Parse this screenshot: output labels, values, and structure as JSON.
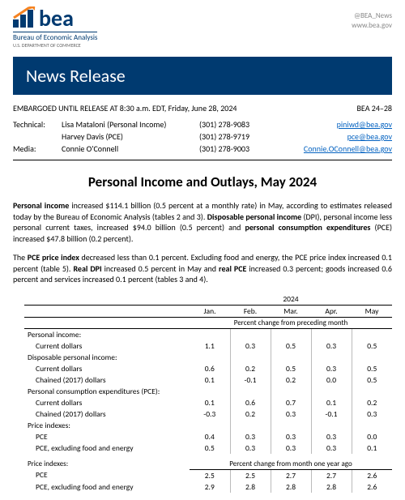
{
  "header": {
    "logo_letters": "bea",
    "agency": "Bureau of Economic Analysis",
    "dept": "U.S. DEPARTMENT OF COMMERCE",
    "twitter": "@BEA_News",
    "site": "www.bea.gov"
  },
  "banner": "News Release",
  "embargo": "EMBARGOED UNTIL RELEASE AT 8:30 a.m. EDT, Friday, June 28, 2024",
  "release_id": "BEA 24–28",
  "contacts": [
    {
      "role": "Technical:",
      "name": "Lisa Mataloni (Personal Income)",
      "phone": "(301) 278-9083",
      "email": "piniwd@bea.gov"
    },
    {
      "role": "",
      "name": "Harvey Davis (PCE)",
      "phone": "(301) 278-9719",
      "email": "pce@bea.gov"
    },
    {
      "role": "Media:",
      "name": "Connie O'Connell",
      "phone": "(301) 278-9003",
      "email": "Connie.OConnell@bea.gov"
    }
  ],
  "title": "Personal Income and Outlays, May 2024",
  "p1": {
    "b1": "Personal income",
    "t1": " increased $114.1 billion (0.5 percent at a monthly rate) in May, according to estimates released today by the Bureau of Economic Analysis (tables 2 and 3). ",
    "b2": "Disposable personal income",
    "t2": " (DPI), personal income less personal current taxes, increased $94.0 billion (0.5 percent) and ",
    "b3": "personal consumption expenditures",
    "t3": " (PCE) increased $47.8 billion (0.2 percent)."
  },
  "p2": {
    "t0": "The ",
    "b1": "PCE price index",
    "t1": " decreased less than 0.1 percent. Excluding food and energy, the PCE price index increased 0.1 percent (table 5). ",
    "b2": "Real DPI",
    "t2": " increased 0.5 percent in May and ",
    "b3": "real PCE",
    "t3": " increased 0.3 percent; goods increased 0.6 percent and services increased 0.1 percent (tables 3 and 4)."
  },
  "table": {
    "year": "2024",
    "months": [
      "Jan.",
      "Feb.",
      "Mar.",
      "Apr.",
      "May"
    ],
    "section1_header": "Percent change from preceding month",
    "rows1": [
      {
        "label": "Personal income:",
        "indent": 0,
        "vals": [
          "",
          "",
          "",
          "",
          ""
        ]
      },
      {
        "label": "Current dollars",
        "indent": 1,
        "vals": [
          "1.1",
          "0.3",
          "0.5",
          "0.3",
          "0.5"
        ]
      },
      {
        "label": "Disposable personal income:",
        "indent": 0,
        "vals": [
          "",
          "",
          "",
          "",
          ""
        ]
      },
      {
        "label": "Current dollars",
        "indent": 1,
        "vals": [
          "0.6",
          "0.2",
          "0.5",
          "0.3",
          "0.5"
        ]
      },
      {
        "label": "Chained (2017) dollars",
        "indent": 1,
        "vals": [
          "0.1",
          "-0.1",
          "0.2",
          "0.0",
          "0.5"
        ]
      },
      {
        "label": "Personal consumption expenditures (PCE):",
        "indent": 0,
        "vals": [
          "",
          "",
          "",
          "",
          ""
        ]
      },
      {
        "label": "Current dollars",
        "indent": 1,
        "vals": [
          "0.1",
          "0.6",
          "0.7",
          "0.1",
          "0.2"
        ]
      },
      {
        "label": "Chained (2017) dollars",
        "indent": 1,
        "vals": [
          "-0.3",
          "0.2",
          "0.3",
          "-0.1",
          "0.3"
        ]
      },
      {
        "label": "Price indexes:",
        "indent": 0,
        "vals": [
          "",
          "",
          "",
          "",
          ""
        ]
      },
      {
        "label": "PCE",
        "indent": 1,
        "vals": [
          "0.4",
          "0.3",
          "0.3",
          "0.3",
          "0.0"
        ]
      },
      {
        "label": "PCE, excluding food and energy",
        "indent": 1,
        "vals": [
          "0.5",
          "0.3",
          "0.3",
          "0.3",
          "0.1"
        ]
      }
    ],
    "section2_header": "Percent change from month one year ago",
    "rows2": [
      {
        "label": "Price indexes:",
        "indent": 0,
        "vals": [
          "",
          "",
          "",
          "",
          ""
        ]
      },
      {
        "label": "PCE",
        "indent": 1,
        "vals": [
          "2.5",
          "2.5",
          "2.7",
          "2.7",
          "2.6"
        ]
      },
      {
        "label": "PCE, excluding food and energy",
        "indent": 1,
        "vals": [
          "2.9",
          "2.8",
          "2.8",
          "2.8",
          "2.6"
        ]
      }
    ]
  },
  "colors": {
    "brand": "#003a70",
    "link": "#0563c1",
    "bar_orange": "#f58220",
    "bar_blue": "#003a70"
  }
}
